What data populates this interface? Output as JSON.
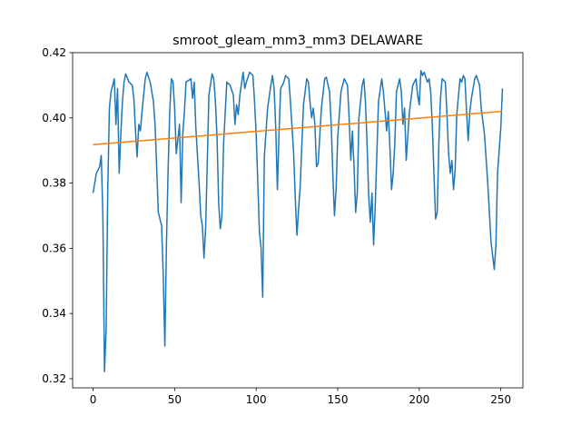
{
  "chart_data": {
    "type": "line",
    "title": "smroot_gleam_mm3_mm3 DELAWARE",
    "xlim": [
      -12.55,
      263.55
    ],
    "xticks": [
      0,
      50,
      100,
      150,
      200,
      250
    ],
    "ylim": [
      0.3172,
      0.42
    ],
    "yticks": [
      0.32,
      0.34,
      0.36,
      0.38,
      {
        "value": 0.4,
        "label": "0.40"
      },
      0.42
    ],
    "series": [
      {
        "color": "#1f77b4",
        "x": [
          0,
          1,
          2,
          3,
          4,
          5,
          6,
          7,
          8,
          9,
          10,
          11,
          12,
          13,
          14,
          15,
          16,
          17,
          18,
          19,
          20,
          22,
          24,
          25,
          26,
          27,
          28,
          29,
          30,
          32,
          33,
          35,
          37,
          38,
          40,
          42,
          43,
          44,
          45,
          46,
          47,
          48,
          49,
          50,
          51,
          53,
          54,
          55,
          56,
          57,
          60,
          61,
          62,
          63,
          65,
          66,
          67,
          68,
          69,
          70,
          71,
          73,
          74,
          75,
          76,
          77,
          78,
          79,
          80,
          82,
          84,
          86,
          87,
          88,
          89,
          90,
          92,
          93,
          94,
          96,
          98,
          99,
          100,
          101,
          102,
          103,
          104,
          105,
          107,
          109,
          110,
          111,
          112,
          113,
          114,
          115,
          117,
          118,
          120,
          121,
          123,
          124,
          125,
          126,
          127,
          129,
          131,
          132,
          133,
          134,
          135,
          136,
          137,
          138,
          140,
          142,
          143,
          145,
          146,
          147,
          148,
          149,
          150,
          152,
          154,
          156,
          157,
          158,
          159,
          160,
          161,
          162,
          163,
          165,
          166,
          167,
          168,
          169,
          170,
          171,
          172,
          173,
          174,
          175,
          177,
          178,
          180,
          181,
          182,
          183,
          184,
          185,
          186,
          188,
          189,
          190,
          191,
          192,
          194,
          196,
          198,
          199,
          200,
          201,
          202,
          203,
          205,
          206,
          207,
          208,
          209,
          210,
          211,
          212,
          213,
          214,
          216,
          217,
          218,
          219,
          220,
          221,
          222,
          223,
          225,
          226,
          227,
          228,
          229,
          230,
          231,
          232,
          234,
          235,
          237,
          238,
          240,
          242,
          244,
          246,
          247,
          248,
          250,
          251
        ],
        "values": [
          0.377,
          0.38,
          0.383,
          0.384,
          0.385,
          0.3885,
          0.37,
          0.3222,
          0.335,
          0.378,
          0.403,
          0.408,
          0.41,
          0.412,
          0.398,
          0.409,
          0.383,
          0.395,
          0.405,
          0.411,
          0.4135,
          0.411,
          0.41,
          0.406,
          0.396,
          0.388,
          0.398,
          0.396,
          0.402,
          0.412,
          0.414,
          0.411,
          0.405,
          0.398,
          0.371,
          0.367,
          0.352,
          0.33,
          0.362,
          0.384,
          0.402,
          0.412,
          0.411,
          0.403,
          0.389,
          0.398,
          0.374,
          0.395,
          0.402,
          0.411,
          0.412,
          0.406,
          0.411,
          0.397,
          0.38,
          0.37,
          0.367,
          0.357,
          0.366,
          0.386,
          0.407,
          0.4135,
          0.412,
          0.405,
          0.394,
          0.374,
          0.366,
          0.37,
          0.392,
          0.411,
          0.41,
          0.407,
          0.398,
          0.404,
          0.401,
          0.407,
          0.414,
          0.409,
          0.411,
          0.414,
          0.413,
          0.405,
          0.395,
          0.38,
          0.365,
          0.36,
          0.345,
          0.388,
          0.403,
          0.41,
          0.413,
          0.409,
          0.397,
          0.378,
          0.395,
          0.409,
          0.411,
          0.413,
          0.412,
          0.405,
          0.389,
          0.375,
          0.364,
          0.372,
          0.379,
          0.404,
          0.412,
          0.411,
          0.405,
          0.4,
          0.403,
          0.398,
          0.385,
          0.386,
          0.403,
          0.412,
          0.4125,
          0.408,
          0.398,
          0.383,
          0.37,
          0.378,
          0.394,
          0.408,
          0.412,
          0.41,
          0.4,
          0.387,
          0.396,
          0.385,
          0.371,
          0.377,
          0.4,
          0.41,
          0.412,
          0.405,
          0.392,
          0.376,
          0.368,
          0.377,
          0.361,
          0.373,
          0.389,
          0.405,
          0.412,
          0.408,
          0.396,
          0.402,
          0.391,
          0.378,
          0.383,
          0.392,
          0.408,
          0.412,
          0.408,
          0.398,
          0.403,
          0.387,
          0.402,
          0.41,
          0.412,
          0.407,
          0.404,
          0.4145,
          0.413,
          0.414,
          0.411,
          0.412,
          0.408,
          0.398,
          0.383,
          0.369,
          0.371,
          0.392,
          0.406,
          0.412,
          0.411,
          0.401,
          0.389,
          0.383,
          0.387,
          0.378,
          0.384,
          0.401,
          0.412,
          0.411,
          0.413,
          0.412,
          0.402,
          0.393,
          0.402,
          0.406,
          0.412,
          0.413,
          0.41,
          0.403,
          0.395,
          0.38,
          0.362,
          0.3535,
          0.361,
          0.383,
          0.397,
          0.409
        ]
      },
      {
        "color": "#ff7f0e",
        "x": [
          0,
          251
        ],
        "values": [
          0.3918,
          0.402
        ]
      }
    ]
  }
}
